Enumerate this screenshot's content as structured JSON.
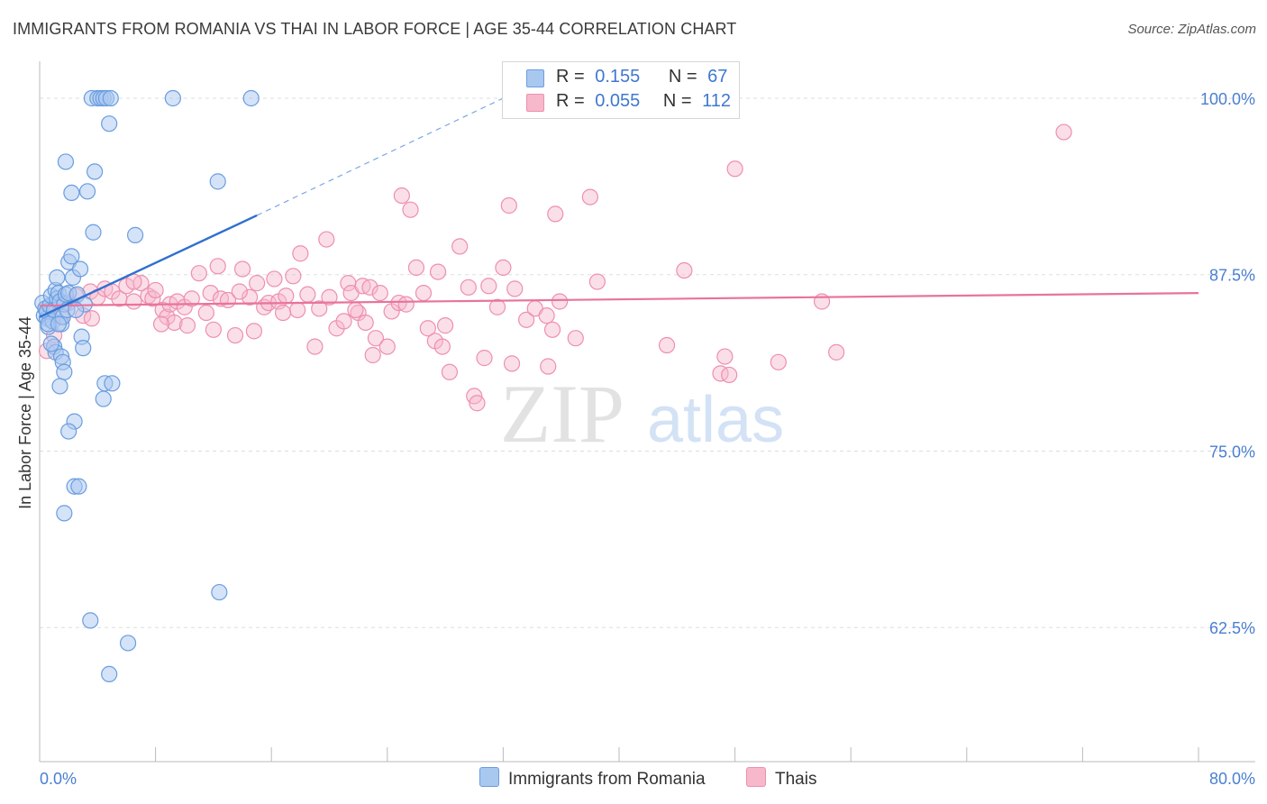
{
  "title": "IMMIGRANTS FROM ROMANIA VS THAI IN LABOR FORCE | AGE 35-44 CORRELATION CHART",
  "source": "Source: ZipAtlas.com",
  "watermark": {
    "zip": "ZIP",
    "atlas": "atlas"
  },
  "legend": {
    "rows": [
      {
        "r_label": "R =",
        "r_value": "0.155",
        "n_label": "N =",
        "n_value": "67"
      },
      {
        "r_label": "R =",
        "r_value": "0.055",
        "n_label": "N =",
        "n_value": "112"
      }
    ]
  },
  "series_labels": {
    "blue": "Immigrants from Romania",
    "pink": "Thais"
  },
  "colors": {
    "blue_fill": "#a9c8f0",
    "blue_stroke": "#6a9de0",
    "blue_line": "#2f6fd0",
    "pink_fill": "#f7b8cb",
    "pink_stroke": "#ee8fae",
    "pink_line": "#e8739d",
    "tick_text": "#4a7fd0",
    "grid": "#dddddd"
  },
  "chart_data": {
    "type": "scatter",
    "title": "IMMIGRANTS FROM ROMANIA VS THAI IN LABOR FORCE | AGE 35-44 CORRELATION CHART",
    "xlabel": "",
    "ylabel": "In Labor Force | Age 35-44",
    "xlim": [
      0,
      80
    ],
    "ylim": [
      53,
      103
    ],
    "x_tick_labels": [
      "0.0%",
      "80.0%"
    ],
    "y_ticks": [
      62.5,
      75.0,
      87.5,
      100.0
    ],
    "y_tick_labels": [
      "62.5%",
      "75.0%",
      "87.5%",
      "100.0%"
    ],
    "series": [
      {
        "name": "Immigrants from Romania",
        "R": 0.155,
        "N": 67,
        "trend": {
          "x0": 0.0,
          "y0": 84.5,
          "x1": 15.0,
          "y1": 91.7,
          "dash_to_x": 32.0,
          "dash_to_y": 100.0
        },
        "points": [
          [
            0.2,
            85.5
          ],
          [
            0.3,
            84.6
          ],
          [
            0.4,
            85.1
          ],
          [
            0.5,
            84.4
          ],
          [
            0.6,
            83.8
          ],
          [
            0.5,
            84.9
          ],
          [
            0.7,
            85.3
          ],
          [
            0.8,
            86.0
          ],
          [
            0.9,
            84.2
          ],
          [
            1.0,
            85.0
          ],
          [
            1.1,
            86.4
          ],
          [
            1.2,
            85.8
          ],
          [
            1.0,
            82.4
          ],
          [
            1.1,
            82.0
          ],
          [
            1.2,
            87.3
          ],
          [
            1.3,
            86.2
          ],
          [
            1.4,
            85.6
          ],
          [
            1.5,
            84.0
          ],
          [
            1.6,
            84.5
          ],
          [
            1.7,
            85.4
          ],
          [
            1.8,
            86.1
          ],
          [
            1.5,
            81.7
          ],
          [
            1.6,
            81.3
          ],
          [
            1.7,
            80.6
          ],
          [
            1.4,
            79.6
          ],
          [
            2.0,
            88.4
          ],
          [
            2.2,
            88.8
          ],
          [
            2.3,
            87.3
          ],
          [
            2.0,
            86.2
          ],
          [
            2.6,
            86.1
          ],
          [
            2.8,
            87.9
          ],
          [
            3.1,
            85.4
          ],
          [
            2.9,
            83.1
          ],
          [
            3.0,
            82.3
          ],
          [
            2.4,
            77.1
          ],
          [
            2.0,
            76.4
          ],
          [
            2.4,
            72.5
          ],
          [
            2.7,
            72.5
          ],
          [
            1.7,
            70.6
          ],
          [
            1.8,
            95.5
          ],
          [
            2.2,
            93.3
          ],
          [
            3.3,
            93.4
          ],
          [
            3.8,
            94.8
          ],
          [
            3.7,
            90.5
          ],
          [
            4.8,
            98.2
          ],
          [
            3.6,
            100.0
          ],
          [
            4.0,
            100.0
          ],
          [
            4.2,
            100.0
          ],
          [
            4.4,
            100.0
          ],
          [
            4.6,
            100.0
          ],
          [
            4.9,
            100.0
          ],
          [
            4.5,
            79.8
          ],
          [
            5.0,
            79.8
          ],
          [
            4.4,
            78.7
          ],
          [
            6.6,
            90.3
          ],
          [
            9.2,
            100.0
          ],
          [
            14.6,
            100.0
          ],
          [
            12.3,
            94.1
          ],
          [
            12.4,
            65.0
          ],
          [
            3.5,
            63.0
          ],
          [
            6.1,
            61.4
          ],
          [
            4.8,
            59.2
          ],
          [
            0.6,
            84.0
          ],
          [
            1.9,
            85.0
          ],
          [
            0.8,
            82.6
          ],
          [
            2.5,
            85.0
          ],
          [
            1.3,
            84.0
          ]
        ]
      },
      {
        "name": "Thais",
        "R": 0.055,
        "N": 112,
        "trend": {
          "x0": 0.0,
          "y0": 85.3,
          "x1": 80.0,
          "y1": 86.2
        },
        "points": [
          [
            0.5,
            82.1
          ],
          [
            1.0,
            83.2
          ],
          [
            1.5,
            84.5
          ],
          [
            2.0,
            85.5
          ],
          [
            2.5,
            86.0
          ],
          [
            3.0,
            84.6
          ],
          [
            3.5,
            86.3
          ],
          [
            4.0,
            85.9
          ],
          [
            4.5,
            86.5
          ],
          [
            5.0,
            86.3
          ],
          [
            5.5,
            85.8
          ],
          [
            6.0,
            86.7
          ],
          [
            6.5,
            85.6
          ],
          [
            7.0,
            86.9
          ],
          [
            7.5,
            86.0
          ],
          [
            7.8,
            85.8
          ],
          [
            8.0,
            86.4
          ],
          [
            8.5,
            85.0
          ],
          [
            8.8,
            84.5
          ],
          [
            9.0,
            85.4
          ],
          [
            9.5,
            85.6
          ],
          [
            9.3,
            84.1
          ],
          [
            10.0,
            85.2
          ],
          [
            10.2,
            83.9
          ],
          [
            10.5,
            85.8
          ],
          [
            11.0,
            87.6
          ],
          [
            11.5,
            84.8
          ],
          [
            11.8,
            86.2
          ],
          [
            12.0,
            83.6
          ],
          [
            12.3,
            88.1
          ],
          [
            12.5,
            85.8
          ],
          [
            13.0,
            85.7
          ],
          [
            13.5,
            83.2
          ],
          [
            14.0,
            87.9
          ],
          [
            14.5,
            85.9
          ],
          [
            14.8,
            83.5
          ],
          [
            15.0,
            86.9
          ],
          [
            15.5,
            85.2
          ],
          [
            15.8,
            85.5
          ],
          [
            16.2,
            87.2
          ],
          [
            16.5,
            85.6
          ],
          [
            17.0,
            86.0
          ],
          [
            17.5,
            87.4
          ],
          [
            17.8,
            85.0
          ],
          [
            18.0,
            89.0
          ],
          [
            18.5,
            86.1
          ],
          [
            19.0,
            82.4
          ],
          [
            19.3,
            85.1
          ],
          [
            19.8,
            90.0
          ],
          [
            20.0,
            85.9
          ],
          [
            20.5,
            83.7
          ],
          [
            21.0,
            84.2
          ],
          [
            21.3,
            86.9
          ],
          [
            21.5,
            86.2
          ],
          [
            22.0,
            84.8
          ],
          [
            22.3,
            86.7
          ],
          [
            22.5,
            84.1
          ],
          [
            22.8,
            86.6
          ],
          [
            23.0,
            81.8
          ],
          [
            23.2,
            83.0
          ],
          [
            23.5,
            86.2
          ],
          [
            24.0,
            82.4
          ],
          [
            24.3,
            84.9
          ],
          [
            24.8,
            85.5
          ],
          [
            25.0,
            93.1
          ],
          [
            25.3,
            85.4
          ],
          [
            25.6,
            92.1
          ],
          [
            26.0,
            88.0
          ],
          [
            26.5,
            86.2
          ],
          [
            26.8,
            83.7
          ],
          [
            27.3,
            82.8
          ],
          [
            27.5,
            87.7
          ],
          [
            27.8,
            82.4
          ],
          [
            28.0,
            83.9
          ],
          [
            28.3,
            80.6
          ],
          [
            29.0,
            89.5
          ],
          [
            29.6,
            86.6
          ],
          [
            30.0,
            78.9
          ],
          [
            30.2,
            78.4
          ],
          [
            30.7,
            81.6
          ],
          [
            31.0,
            86.7
          ],
          [
            31.6,
            85.2
          ],
          [
            32.0,
            88.0
          ],
          [
            32.4,
            92.4
          ],
          [
            32.6,
            81.2
          ],
          [
            32.8,
            86.5
          ],
          [
            33.6,
            84.3
          ],
          [
            34.2,
            85.1
          ],
          [
            35.0,
            84.6
          ],
          [
            35.1,
            81.0
          ],
          [
            35.4,
            83.6
          ],
          [
            35.6,
            91.8
          ],
          [
            35.9,
            85.6
          ],
          [
            37.0,
            83.0
          ],
          [
            38.0,
            93.0
          ],
          [
            38.5,
            87.0
          ],
          [
            43.3,
            82.5
          ],
          [
            44.5,
            87.8
          ],
          [
            47.0,
            80.5
          ],
          [
            47.3,
            81.7
          ],
          [
            47.6,
            80.4
          ],
          [
            48.0,
            95.0
          ],
          [
            51.0,
            81.3
          ],
          [
            54.0,
            85.6
          ],
          [
            55.0,
            82.0
          ],
          [
            70.7,
            97.6
          ],
          [
            3.6,
            84.4
          ],
          [
            6.5,
            87.0
          ],
          [
            8.4,
            84.0
          ],
          [
            13.8,
            86.3
          ],
          [
            16.8,
            84.8
          ],
          [
            21.8,
            85.0
          ]
        ]
      }
    ]
  }
}
